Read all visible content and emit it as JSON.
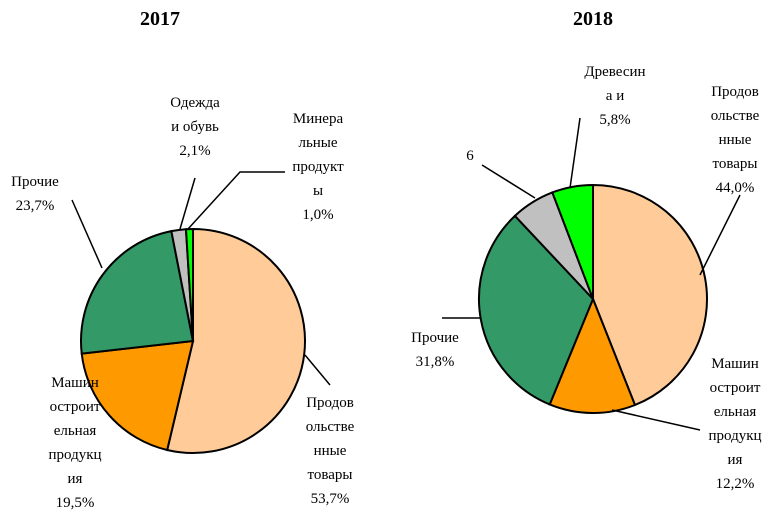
{
  "chart_data": [
    {
      "type": "pie",
      "title": "2017",
      "categories": [
        "Продов\nольстве\nнные\nтовары",
        "Машин\nостроит\nельная\nпродукц\nия",
        "Прочие",
        "Одежда\nи обувь",
        "Минера\nльные\nпродукт\nы"
      ],
      "values": [
        53.7,
        19.5,
        23.7,
        2.1,
        1.0
      ],
      "value_labels": [
        "53,7%",
        "19,5%",
        "23,7%",
        "2,1%",
        "1,0%"
      ],
      "colors": [
        "#FFCC99",
        "#FF9900",
        "#339966",
        "#C0C0C0",
        "#00FF00"
      ]
    },
    {
      "type": "pie",
      "title": "2018",
      "categories": [
        "Продов\nольстве\nнные\nтовары",
        "Машин\nостроит\nельная\nпродукц\nия",
        "Прочие",
        null,
        "Древесин\nа и"
      ],
      "values": [
        44.0,
        12.2,
        31.8,
        6.2,
        5.8
      ],
      "value_labels": [
        "44,0%",
        "12,2%",
        "31,8%",
        "6",
        "5,8%"
      ],
      "colors": [
        "#FFCC99",
        "#FF9900",
        "#339966",
        "#C0C0C0",
        "#00FF00"
      ]
    }
  ]
}
